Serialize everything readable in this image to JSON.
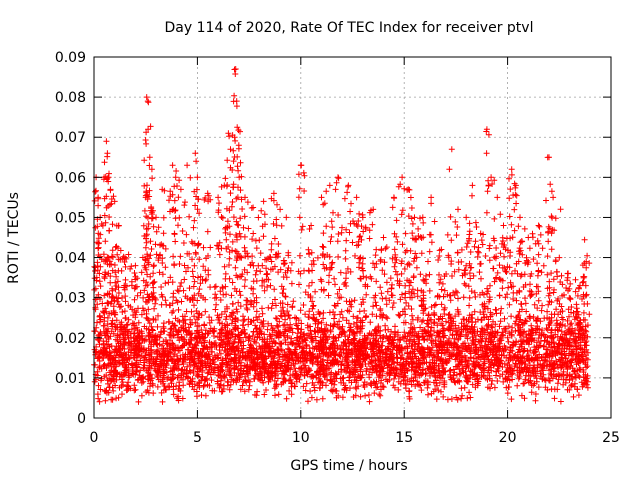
{
  "chart_data": {
    "type": "scatter",
    "title": "Day 114 of 2020, Rate Of TEC Index for receiver ptvl",
    "xlabel": "GPS time / hours",
    "ylabel": "ROTI / TECUs",
    "xlim": [
      0,
      25
    ],
    "ylim": [
      0,
      0.09
    ],
    "xticks": [
      "0",
      "5",
      "10",
      "15",
      "20",
      "25"
    ],
    "yticks": [
      "0",
      "0.01",
      "0.02",
      "0.03",
      "0.04",
      "0.05",
      "0.06",
      "0.07",
      "0.08",
      "0.09"
    ],
    "grid": true,
    "marker": "plus",
    "series_color": "#ff0000",
    "summary": {
      "time_range_hours": [
        0,
        23.9
      ],
      "typical_roti_range": [
        0.008,
        0.025
      ],
      "dense_band_center": 0.015,
      "min_value": 0.004
    },
    "peak_points": [
      {
        "x": 0.1,
        "y": 0.06
      },
      {
        "x": 0.2,
        "y": 0.055
      },
      {
        "x": 0.3,
        "y": 0.05
      },
      {
        "x": 0.6,
        "y": 0.069
      },
      {
        "x": 0.65,
        "y": 0.066
      },
      {
        "x": 0.7,
        "y": 0.06
      },
      {
        "x": 0.8,
        "y": 0.057
      },
      {
        "x": 1.0,
        "y": 0.054
      },
      {
        "x": 1.2,
        "y": 0.048
      },
      {
        "x": 1.5,
        "y": 0.04
      },
      {
        "x": 2.0,
        "y": 0.038
      },
      {
        "x": 2.55,
        "y": 0.08
      },
      {
        "x": 2.6,
        "y": 0.079
      },
      {
        "x": 2.7,
        "y": 0.065
      },
      {
        "x": 2.8,
        "y": 0.062
      },
      {
        "x": 2.5,
        "y": 0.055
      },
      {
        "x": 3.0,
        "y": 0.05
      },
      {
        "x": 3.3,
        "y": 0.057
      },
      {
        "x": 3.8,
        "y": 0.063
      },
      {
        "x": 3.95,
        "y": 0.06
      },
      {
        "x": 4.2,
        "y": 0.057
      },
      {
        "x": 4.5,
        "y": 0.063
      },
      {
        "x": 4.9,
        "y": 0.066
      },
      {
        "x": 5.0,
        "y": 0.06
      },
      {
        "x": 5.5,
        "y": 0.056
      },
      {
        "x": 6.0,
        "y": 0.055
      },
      {
        "x": 6.3,
        "y": 0.058
      },
      {
        "x": 6.5,
        "y": 0.071
      },
      {
        "x": 6.6,
        "y": 0.067
      },
      {
        "x": 6.8,
        "y": 0.07
      },
      {
        "x": 6.85,
        "y": 0.087
      },
      {
        "x": 6.9,
        "y": 0.079
      },
      {
        "x": 7.0,
        "y": 0.068
      },
      {
        "x": 7.3,
        "y": 0.055
      },
      {
        "x": 7.7,
        "y": 0.046
      },
      {
        "x": 8.2,
        "y": 0.054
      },
      {
        "x": 8.7,
        "y": 0.056
      },
      {
        "x": 9.0,
        "y": 0.052
      },
      {
        "x": 9.3,
        "y": 0.05
      },
      {
        "x": 10.0,
        "y": 0.063
      },
      {
        "x": 10.5,
        "y": 0.048
      },
      {
        "x": 11.0,
        "y": 0.055
      },
      {
        "x": 11.4,
        "y": 0.058
      },
      {
        "x": 11.8,
        "y": 0.06
      },
      {
        "x": 12.3,
        "y": 0.058
      },
      {
        "x": 12.7,
        "y": 0.055
      },
      {
        "x": 13.0,
        "y": 0.05
      },
      {
        "x": 13.5,
        "y": 0.052
      },
      {
        "x": 14.0,
        "y": 0.045
      },
      {
        "x": 14.5,
        "y": 0.055
      },
      {
        "x": 14.9,
        "y": 0.06
      },
      {
        "x": 15.2,
        "y": 0.057
      },
      {
        "x": 15.5,
        "y": 0.05
      },
      {
        "x": 15.9,
        "y": 0.05
      },
      {
        "x": 16.3,
        "y": 0.055
      },
      {
        "x": 16.8,
        "y": 0.042
      },
      {
        "x": 17.3,
        "y": 0.067
      },
      {
        "x": 17.6,
        "y": 0.052
      },
      {
        "x": 18.0,
        "y": 0.05
      },
      {
        "x": 18.3,
        "y": 0.058
      },
      {
        "x": 18.7,
        "y": 0.046
      },
      {
        "x": 19.0,
        "y": 0.072
      },
      {
        "x": 19.2,
        "y": 0.06
      },
      {
        "x": 19.5,
        "y": 0.055
      },
      {
        "x": 19.8,
        "y": 0.048
      },
      {
        "x": 20.2,
        "y": 0.062
      },
      {
        "x": 20.4,
        "y": 0.058
      },
      {
        "x": 20.6,
        "y": 0.05
      },
      {
        "x": 21.0,
        "y": 0.045
      },
      {
        "x": 21.5,
        "y": 0.048
      },
      {
        "x": 22.0,
        "y": 0.065
      },
      {
        "x": 22.2,
        "y": 0.055
      },
      {
        "x": 22.5,
        "y": 0.04
      },
      {
        "x": 22.9,
        "y": 0.036
      },
      {
        "x": 23.5,
        "y": 0.033
      },
      {
        "x": 23.8,
        "y": 0.039
      }
    ]
  }
}
